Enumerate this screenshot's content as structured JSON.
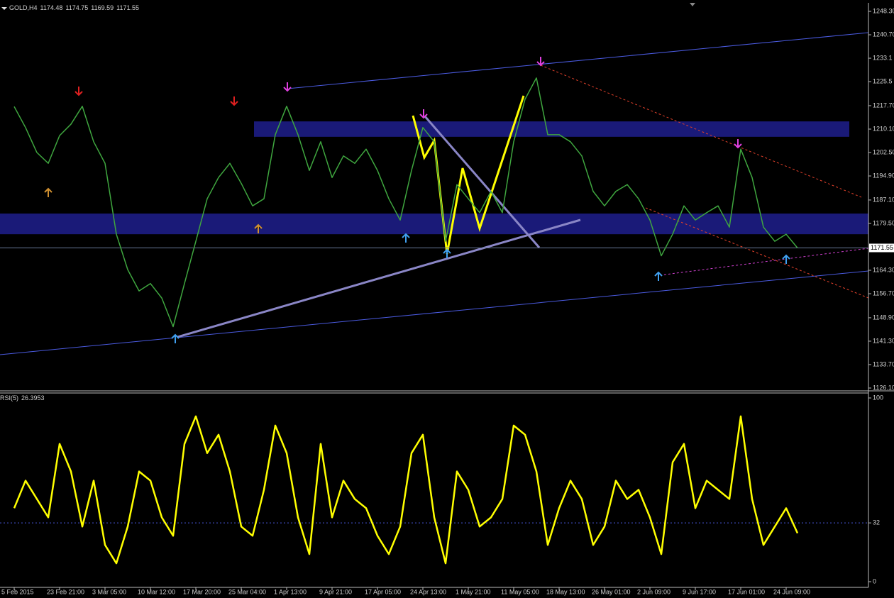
{
  "chart_data": [
    {
      "type": "line",
      "symbol": "GOLD,H4",
      "ohlc": [
        1174.48,
        1174.75,
        1169.59,
        1171.55
      ],
      "color": "#3fa63f",
      "values": [
        1217.4,
        1210.6,
        1202.5,
        1199,
        1208,
        1211.7,
        1217.5,
        1206,
        1199,
        1176,
        1164.5,
        1157.6,
        1160,
        1155.3,
        1146,
        1160,
        1173.7,
        1187.5,
        1194.4,
        1199,
        1192.5,
        1185.2,
        1187.5,
        1208.3,
        1217.5,
        1208.3,
        1196.7,
        1206,
        1194.4,
        1201.4,
        1199,
        1203.6,
        1196.7,
        1187.5,
        1180.6,
        1196.7,
        1210.6,
        1206,
        1173.7,
        1192.1,
        1187.5,
        1183,
        1189.9,
        1183,
        1206,
        1219.8,
        1226.7,
        1208.3,
        1208.3,
        1206,
        1201.4,
        1189.9,
        1185.2,
        1189.9,
        1192.1,
        1187.5,
        1180.6,
        1169,
        1176,
        1185.2,
        1180.6,
        1183,
        1185.2,
        1178.3,
        1203.6,
        1194.4,
        1178.3,
        1173.7,
        1176,
        1171.55
      ],
      "ylim": [
        1126.1,
        1248.3
      ],
      "yticks": [
        {
          "value": 1248.3,
          "label": "1248.30"
        },
        {
          "value": 1240.7,
          "label": "1240.70"
        },
        1233.1,
        1225.5,
        {
          "value": 1217.7,
          "label": "1217.70"
        },
        {
          "value": 1210.1,
          "label": "1210.10"
        },
        {
          "value": 1202.5,
          "label": "1202.50"
        },
        {
          "value": 1194.9,
          "label": "1194.90"
        },
        {
          "value": 1187.1,
          "label": "1187.10"
        },
        {
          "value": 1179.5,
          "label": "1179.50"
        },
        {
          "value": 1164.3,
          "label": "1164.30"
        },
        {
          "value": 1156.7,
          "label": "1156.70"
        },
        {
          "value": 1148.9,
          "label": "1148.90"
        },
        {
          "value": 1141.3,
          "label": "1141.30"
        },
        {
          "value": 1133.7,
          "label": "1133.70"
        },
        {
          "value": 1126.1,
          "label": "1126.10"
        }
      ],
      "last_price": 1171.55,
      "zones": [
        {
          "from": 1176.0,
          "to": 1182.7
        },
        {
          "from": 1207.6,
          "to": 1212.6
        }
      ],
      "zone_color": "#1a1a78"
    },
    {
      "type": "line",
      "name": "RSI(5)",
      "current": 26.3953,
      "color": "#ffff00",
      "values": [
        40,
        55,
        45,
        35,
        75,
        60,
        30,
        55,
        20,
        10,
        30,
        60,
        55,
        35,
        25,
        75,
        90,
        70,
        80,
        60,
        30,
        25,
        50,
        85,
        70,
        35,
        15,
        75,
        35,
        55,
        45,
        40,
        25,
        15,
        30,
        70,
        80,
        35,
        10,
        60,
        50,
        30,
        35,
        45,
        85,
        80,
        60,
        20,
        40,
        55,
        45,
        20,
        30,
        55,
        45,
        50,
        35,
        15,
        65,
        75,
        40,
        55,
        50,
        45,
        90,
        45,
        20,
        30,
        40,
        26.3953
      ],
      "categories": [
        "5 Feb 2015",
        null,
        null,
        null,
        "23 Feb 21:00",
        null,
        null,
        null,
        "3 Mar 05:00",
        null,
        null,
        null,
        "10 Mar 12:00",
        null,
        null,
        null,
        "17 Mar 20:00",
        null,
        null,
        null,
        "25 Mar 04:00",
        null,
        null,
        null,
        "1 Apr 13:00",
        null,
        null,
        null,
        "9 Apr 21:00",
        null,
        null,
        null,
        "17 Apr 05:00",
        null,
        null,
        null,
        "24 Apr 13:00",
        null,
        null,
        null,
        "1 May 21:00",
        null,
        null,
        null,
        "11 May 05:00",
        null,
        null,
        null,
        "18 May 13:00",
        null,
        null,
        null,
        "26 May 01:00",
        null,
        null,
        null,
        "2 Jun 09:00",
        null,
        null,
        null,
        "9 Jun 17:00",
        null,
        null,
        null,
        "17 Jun 01:00",
        null,
        null,
        null,
        "24 Jun 09:00",
        null
      ],
      "ylim": [
        0,
        100
      ],
      "yticks": [
        0,
        32,
        100
      ],
      "dashed_levels": true
    }
  ]
}
